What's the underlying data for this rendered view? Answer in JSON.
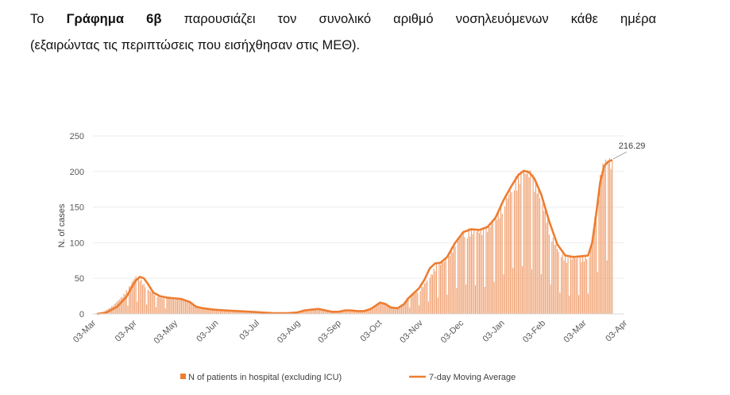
{
  "intro": {
    "line1_prefix": "Το ",
    "line1_bold": "Γράφημα 6β",
    "line1_rest": " παρουσιάζει τον συνολικό αριθμό νοσηλευόμενων κάθε ημέρα",
    "line2": "(εξαιρώντας τις περιπτώσεις που εισήχθησαν στις ΜΕΘ)."
  },
  "chart_data": {
    "type": "bar",
    "ylabel": "N. of cases",
    "ylim": [
      0,
      250
    ],
    "yticks": [
      0,
      50,
      100,
      150,
      200,
      250
    ],
    "x_range": [
      "03-Mar",
      "03-Apr"
    ],
    "x_ticks": [
      "03-Mar",
      "03-Apr",
      "03-May",
      "03-Jun",
      "03-Jul",
      "03-Aug",
      "03-Sep",
      "03-Oct",
      "03-Nov",
      "03-Dec",
      "03-Jan",
      "03-Feb",
      "03-Mar",
      "03-Apr"
    ],
    "colors": {
      "bar": "#F0A070",
      "line": "#ED7D31",
      "axis": "#D9D9D9"
    },
    "series": [
      {
        "name": "N of patients in hospital (excluding ICU)",
        "kind": "bar",
        "anchors": [
          [
            0,
            0
          ],
          [
            8,
            3
          ],
          [
            15,
            12
          ],
          [
            22,
            25
          ],
          [
            27,
            38
          ],
          [
            30,
            48
          ],
          [
            32,
            53
          ],
          [
            35,
            50
          ],
          [
            38,
            42
          ],
          [
            42,
            33
          ],
          [
            47,
            27
          ],
          [
            52,
            23
          ],
          [
            58,
            22
          ],
          [
            64,
            21
          ],
          [
            70,
            19
          ],
          [
            75,
            14
          ],
          [
            80,
            9
          ],
          [
            87,
            7
          ],
          [
            95,
            5
          ],
          [
            105,
            5
          ],
          [
            115,
            4
          ],
          [
            122,
            3
          ],
          [
            130,
            2
          ],
          [
            140,
            2
          ],
          [
            150,
            2
          ],
          [
            155,
            3
          ],
          [
            160,
            6
          ],
          [
            165,
            7
          ],
          [
            170,
            6
          ],
          [
            175,
            4
          ],
          [
            180,
            3
          ],
          [
            185,
            4
          ],
          [
            190,
            5
          ],
          [
            195,
            4
          ],
          [
            200,
            3
          ],
          [
            205,
            5
          ],
          [
            210,
            10
          ],
          [
            213,
            15
          ],
          [
            216,
            16
          ],
          [
            220,
            12
          ],
          [
            225,
            8
          ],
          [
            230,
            10
          ],
          [
            233,
            20
          ],
          [
            236,
            25
          ],
          [
            240,
            30
          ],
          [
            244,
            35
          ],
          [
            248,
            45
          ],
          [
            252,
            55
          ],
          [
            256,
            70
          ],
          [
            262,
            75
          ],
          [
            268,
            95
          ],
          [
            274,
            112
          ],
          [
            280,
            118
          ],
          [
            286,
            118
          ],
          [
            292,
            120
          ],
          [
            298,
            130
          ],
          [
            304,
            150
          ],
          [
            310,
            170
          ],
          [
            315,
            190
          ],
          [
            320,
            200
          ],
          [
            325,
            202
          ],
          [
            330,
            185
          ],
          [
            336,
            150
          ],
          [
            342,
            110
          ],
          [
            348,
            85
          ],
          [
            354,
            78
          ],
          [
            360,
            80
          ],
          [
            366,
            80
          ],
          [
            370,
            82
          ],
          [
            373,
            120
          ],
          [
            376,
            165
          ],
          [
            379,
            205
          ],
          [
            382,
            218
          ],
          [
            385,
            218
          ],
          [
            387,
            212
          ]
        ]
      },
      {
        "name": "7-day Moving Average",
        "kind": "line",
        "anchors": [
          [
            3,
            0
          ],
          [
            10,
            2
          ],
          [
            18,
            10
          ],
          [
            25,
            24
          ],
          [
            29,
            38
          ],
          [
            32,
            47
          ],
          [
            35,
            52
          ],
          [
            38,
            50
          ],
          [
            41,
            42
          ],
          [
            45,
            30
          ],
          [
            50,
            25
          ],
          [
            55,
            23
          ],
          [
            60,
            22
          ],
          [
            66,
            21
          ],
          [
            72,
            17
          ],
          [
            77,
            10
          ],
          [
            82,
            8
          ],
          [
            90,
            6
          ],
          [
            98,
            5
          ],
          [
            108,
            4
          ],
          [
            118,
            3
          ],
          [
            126,
            2
          ],
          [
            135,
            1
          ],
          [
            145,
            1
          ],
          [
            152,
            2
          ],
          [
            158,
            5
          ],
          [
            163,
            6
          ],
          [
            168,
            7
          ],
          [
            173,
            5
          ],
          [
            178,
            3
          ],
          [
            183,
            3
          ],
          [
            188,
            5
          ],
          [
            192,
            5
          ],
          [
            197,
            4
          ],
          [
            202,
            4
          ],
          [
            207,
            7
          ],
          [
            211,
            12
          ],
          [
            214,
            16
          ],
          [
            218,
            14
          ],
          [
            222,
            9
          ],
          [
            227,
            8
          ],
          [
            232,
            14
          ],
          [
            235,
            22
          ],
          [
            239,
            29
          ],
          [
            243,
            36
          ],
          [
            247,
            48
          ],
          [
            251,
            64
          ],
          [
            255,
            71
          ],
          [
            259,
            72
          ],
          [
            264,
            80
          ],
          [
            270,
            100
          ],
          [
            276,
            115
          ],
          [
            282,
            119
          ],
          [
            288,
            118
          ],
          [
            294,
            122
          ],
          [
            300,
            135
          ],
          [
            306,
            160
          ],
          [
            312,
            180
          ],
          [
            317,
            195
          ],
          [
            321,
            201
          ],
          [
            325,
            199
          ],
          [
            329,
            190
          ],
          [
            334,
            168
          ],
          [
            340,
            130
          ],
          [
            346,
            98
          ],
          [
            352,
            82
          ],
          [
            358,
            80
          ],
          [
            364,
            81
          ],
          [
            369,
            82
          ],
          [
            372,
            100
          ],
          [
            375,
            140
          ],
          [
            378,
            185
          ],
          [
            381,
            208
          ],
          [
            384,
            214
          ],
          [
            387,
            216.29
          ]
        ]
      }
    ],
    "last_label": "216.29",
    "legend": {
      "placement": "bottom"
    }
  }
}
